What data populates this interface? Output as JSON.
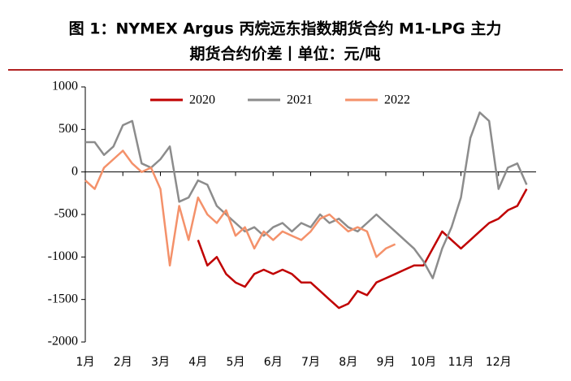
{
  "chart_data": {
    "type": "line",
    "title": [
      "图 1：NYMEX Argus 丙烷远东指数期货合约 M1-LPG 主力",
      "期货合约价差丨单位：元/吨"
    ],
    "categories": [
      "1月",
      null,
      null,
      null,
      "2月",
      null,
      null,
      null,
      "3月",
      null,
      null,
      null,
      "4月",
      null,
      null,
      null,
      "5月",
      null,
      null,
      null,
      "6月",
      null,
      null,
      null,
      "7月",
      null,
      null,
      null,
      "8月",
      null,
      null,
      null,
      "9月",
      null,
      null,
      null,
      "10月",
      null,
      null,
      null,
      "11月",
      null,
      null,
      null,
      "12月",
      null,
      null,
      null
    ],
    "series": [
      {
        "name": "2020",
        "color": "#c00000",
        "values": [
          null,
          null,
          null,
          null,
          null,
          null,
          null,
          null,
          null,
          null,
          null,
          null,
          -800,
          -1100,
          -1000,
          -1200,
          -1300,
          -1350,
          -1200,
          -1150,
          -1200,
          -1150,
          -1200,
          -1300,
          -1300,
          -1400,
          -1500,
          -1600,
          -1550,
          -1400,
          -1450,
          -1300,
          -1250,
          -1200,
          -1150,
          -1100,
          -1100,
          -900,
          -700,
          -800,
          -900,
          -800,
          -700,
          -600,
          -550,
          -450,
          -400,
          -200
        ]
      },
      {
        "name": "2021",
        "color": "#8c8c8c",
        "values": [
          350,
          350,
          200,
          300,
          550,
          600,
          100,
          50,
          150,
          300,
          -350,
          -300,
          -100,
          -150,
          -400,
          -500,
          -600,
          -700,
          -650,
          -750,
          -650,
          -600,
          -700,
          -600,
          -650,
          -500,
          -600,
          -550,
          -650,
          -700,
          -600,
          -500,
          -600,
          -700,
          -800,
          -900,
          -1050,
          -1250,
          -900,
          -650,
          -300,
          400,
          700,
          600,
          -200,
          50,
          100,
          -150
        ]
      },
      {
        "name": "2022",
        "color": "#f4916a",
        "values": [
          -100,
          -200,
          50,
          150,
          250,
          100,
          0,
          50,
          -200,
          -1100,
          -400,
          -800,
          -300,
          -500,
          -600,
          -450,
          -750,
          -650,
          -900,
          -700,
          -800,
          -700,
          -750,
          -800,
          -700,
          -550,
          -500,
          -600,
          -700,
          -650,
          -700,
          -1000,
          -900,
          -850,
          null,
          null,
          null,
          null,
          null,
          null,
          null,
          null,
          null,
          null,
          null,
          null,
          null,
          null
        ]
      }
    ],
    "ylim": [
      -2000,
      1000
    ],
    "yticks": [
      -2000,
      -1500,
      -1000,
      -500,
      0,
      500,
      1000
    ]
  }
}
